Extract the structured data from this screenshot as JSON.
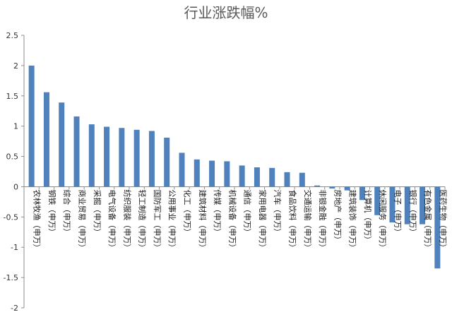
{
  "chart_data": {
    "type": "bar",
    "title": "行业涨跌幅%",
    "xlabel": "",
    "ylabel": "",
    "ylim": [
      -2,
      2.5
    ],
    "yticks": [
      "2.5",
      "2",
      "1.5",
      "1",
      "0.5",
      "0",
      "-0.5",
      "-1",
      "-1.5",
      "-2"
    ],
    "grid": false,
    "bar_color": "#4F81BD",
    "categories": [
      "农林牧渔（申万）",
      "钢铁（申万）",
      "综合（申万）",
      "商业贸易（申万）",
      "采掘（申万）",
      "电气设备（申万）",
      "纺织服装（申万）",
      "轻工制造（申万）",
      "国防军工（申万）",
      "公用事业（申万）",
      "化工（申万）",
      "建筑材料（申万）",
      "传媒（申万）",
      "机械设备（申万）",
      "通信（申万）",
      "家用电器（申万）",
      "汽车（申万）",
      "食品饮料（申万）",
      "交通运输（申万）",
      "非银金融（申万）",
      "房地产（申万）",
      "建筑装饰（申万）",
      "计算机（申万）",
      "休闲服务（申万）",
      "电子（申万）",
      "银行（申万）",
      "有色金属（申万）",
      "医药生物（申万）"
    ],
    "values": [
      2.0,
      1.56,
      1.39,
      1.16,
      1.03,
      0.99,
      0.97,
      0.94,
      0.92,
      0.81,
      0.56,
      0.45,
      0.43,
      0.42,
      0.35,
      0.32,
      0.31,
      0.24,
      0.23,
      0.02,
      -0.03,
      -0.06,
      -0.22,
      -0.47,
      -0.59,
      -0.62,
      -0.62,
      -1.35
    ]
  }
}
